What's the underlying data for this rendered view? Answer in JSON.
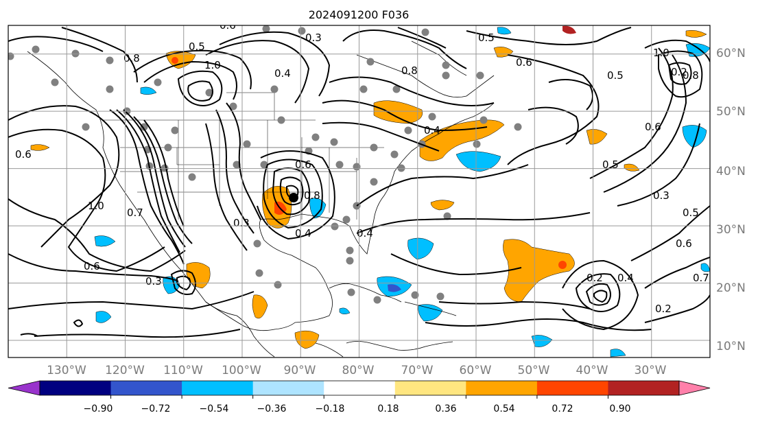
{
  "title": "2024091200 F036",
  "map": {
    "lon_range": [
      -140,
      -20
    ],
    "lat_range": [
      7,
      65
    ],
    "grid_lons": [
      -130,
      -120,
      -110,
      -100,
      -90,
      -80,
      -70,
      -60,
      -50,
      -40,
      -30
    ],
    "grid_lats": [
      10,
      20,
      30,
      40,
      50,
      60
    ],
    "lon_labels": [
      "130°W",
      "120°W",
      "110°W",
      "100°W",
      "90°W",
      "80°W",
      "70°W",
      "60°W",
      "50°W",
      "40°W",
      "30°W"
    ],
    "lat_labels": [
      "10°N",
      "20°N",
      "30°N",
      "40°N",
      "50°N",
      "60°N"
    ],
    "contour_labels": [
      "0.6",
      "0.3",
      "0.5",
      "0.8",
      "1.0",
      "0.4",
      "0.5",
      "0.8",
      "0.6",
      "1.0",
      "0.5",
      "0.8",
      "0.2",
      "0.5",
      "0.6",
      "0.3",
      "0.5",
      "0.6",
      "0.7",
      "0.2",
      "0.4",
      "0.6",
      "0.8",
      "1.0",
      "0.3",
      "0.6",
      "0.3",
      "0.4",
      "0.4",
      "0.7",
      "0.2",
      "0.6",
      "0.4"
    ],
    "colors": {
      "positive_light": "#ffe680",
      "positive_mid": "#ffa500",
      "positive_strong": "#ff4500",
      "negative_light": "#9fe0ff",
      "negative_mid": "#00bfff",
      "negative_strong": "#3355cc",
      "station_marker": "#808080",
      "contour_line": "#000000"
    }
  },
  "colorbar": {
    "ticks": [
      "−0.90",
      "−0.72",
      "−0.54",
      "−0.36",
      "−0.18",
      "0.18",
      "0.36",
      "0.54",
      "0.72",
      "0.90"
    ],
    "colors": [
      "#9933cc",
      "#000080",
      "#3355cc",
      "#00bfff",
      "#aee4ff",
      "#ffffff",
      "#ffe680",
      "#ffa500",
      "#ff4500",
      "#b22222",
      "#ff80aa"
    ]
  }
}
